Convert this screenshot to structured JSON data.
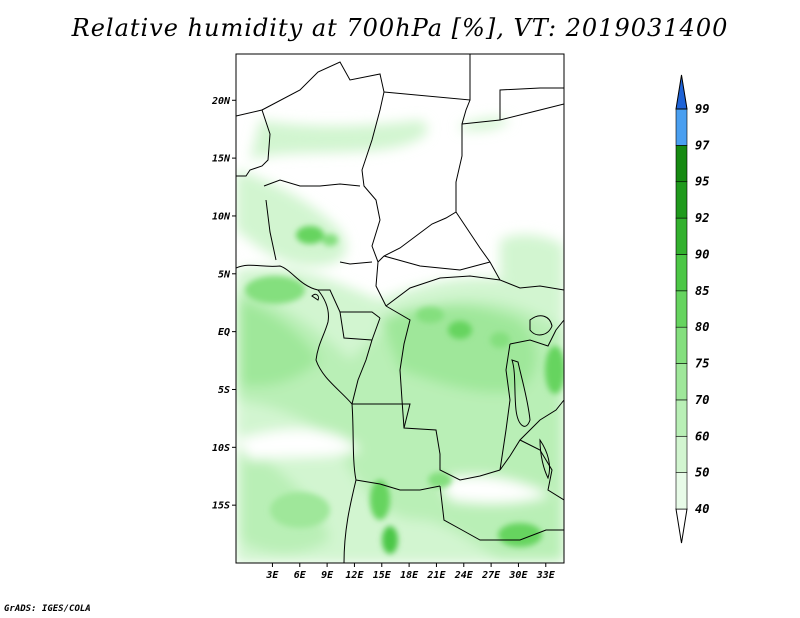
{
  "title": "Relative humidity at 700hPa [%], VT: 2019031400",
  "credit": "GrADS: IGES/COLA",
  "map": {
    "lon_range": [
      -1,
      35
    ],
    "lat_range": [
      -20,
      24
    ],
    "lat_ticks": [
      {
        "value": 20,
        "label": "20N"
      },
      {
        "value": 15,
        "label": "15N"
      },
      {
        "value": 10,
        "label": "10N"
      },
      {
        "value": 5,
        "label": "5N"
      },
      {
        "value": 0,
        "label": "EQ"
      },
      {
        "value": -5,
        "label": "5S"
      },
      {
        "value": -10,
        "label": "10S"
      },
      {
        "value": -15,
        "label": "15S"
      }
    ],
    "lon_ticks": [
      {
        "value": 3,
        "label": "3E"
      },
      {
        "value": 6,
        "label": "6E"
      },
      {
        "value": 9,
        "label": "9E"
      },
      {
        "value": 12,
        "label": "12E"
      },
      {
        "value": 15,
        "label": "15E"
      },
      {
        "value": 18,
        "label": "18E"
      },
      {
        "value": 21,
        "label": "21E"
      },
      {
        "value": 24,
        "label": "24E"
      },
      {
        "value": 27,
        "label": "27E"
      },
      {
        "value": 30,
        "label": "30E"
      },
      {
        "value": 33,
        "label": "33E"
      }
    ]
  },
  "colorbar": {
    "levels": [
      {
        "label": "40",
        "color": "#e8fbe8"
      },
      {
        "label": "50",
        "color": "#d2f5d0"
      },
      {
        "label": "60",
        "color": "#b9efb6"
      },
      {
        "label": "70",
        "color": "#9fe79a"
      },
      {
        "label": "75",
        "color": "#84df7e"
      },
      {
        "label": "80",
        "color": "#66d45f"
      },
      {
        "label": "85",
        "color": "#4cc746"
      },
      {
        "label": "90",
        "color": "#33b12e"
      },
      {
        "label": "92",
        "color": "#1f9a1c"
      },
      {
        "label": "95",
        "color": "#168a12"
      },
      {
        "label": "97",
        "color": "#4a9ff0"
      },
      {
        "label": "99",
        "color": "#2a7ee6"
      }
    ],
    "below_color": "#ffffff",
    "above_color": "#1f63d6"
  }
}
